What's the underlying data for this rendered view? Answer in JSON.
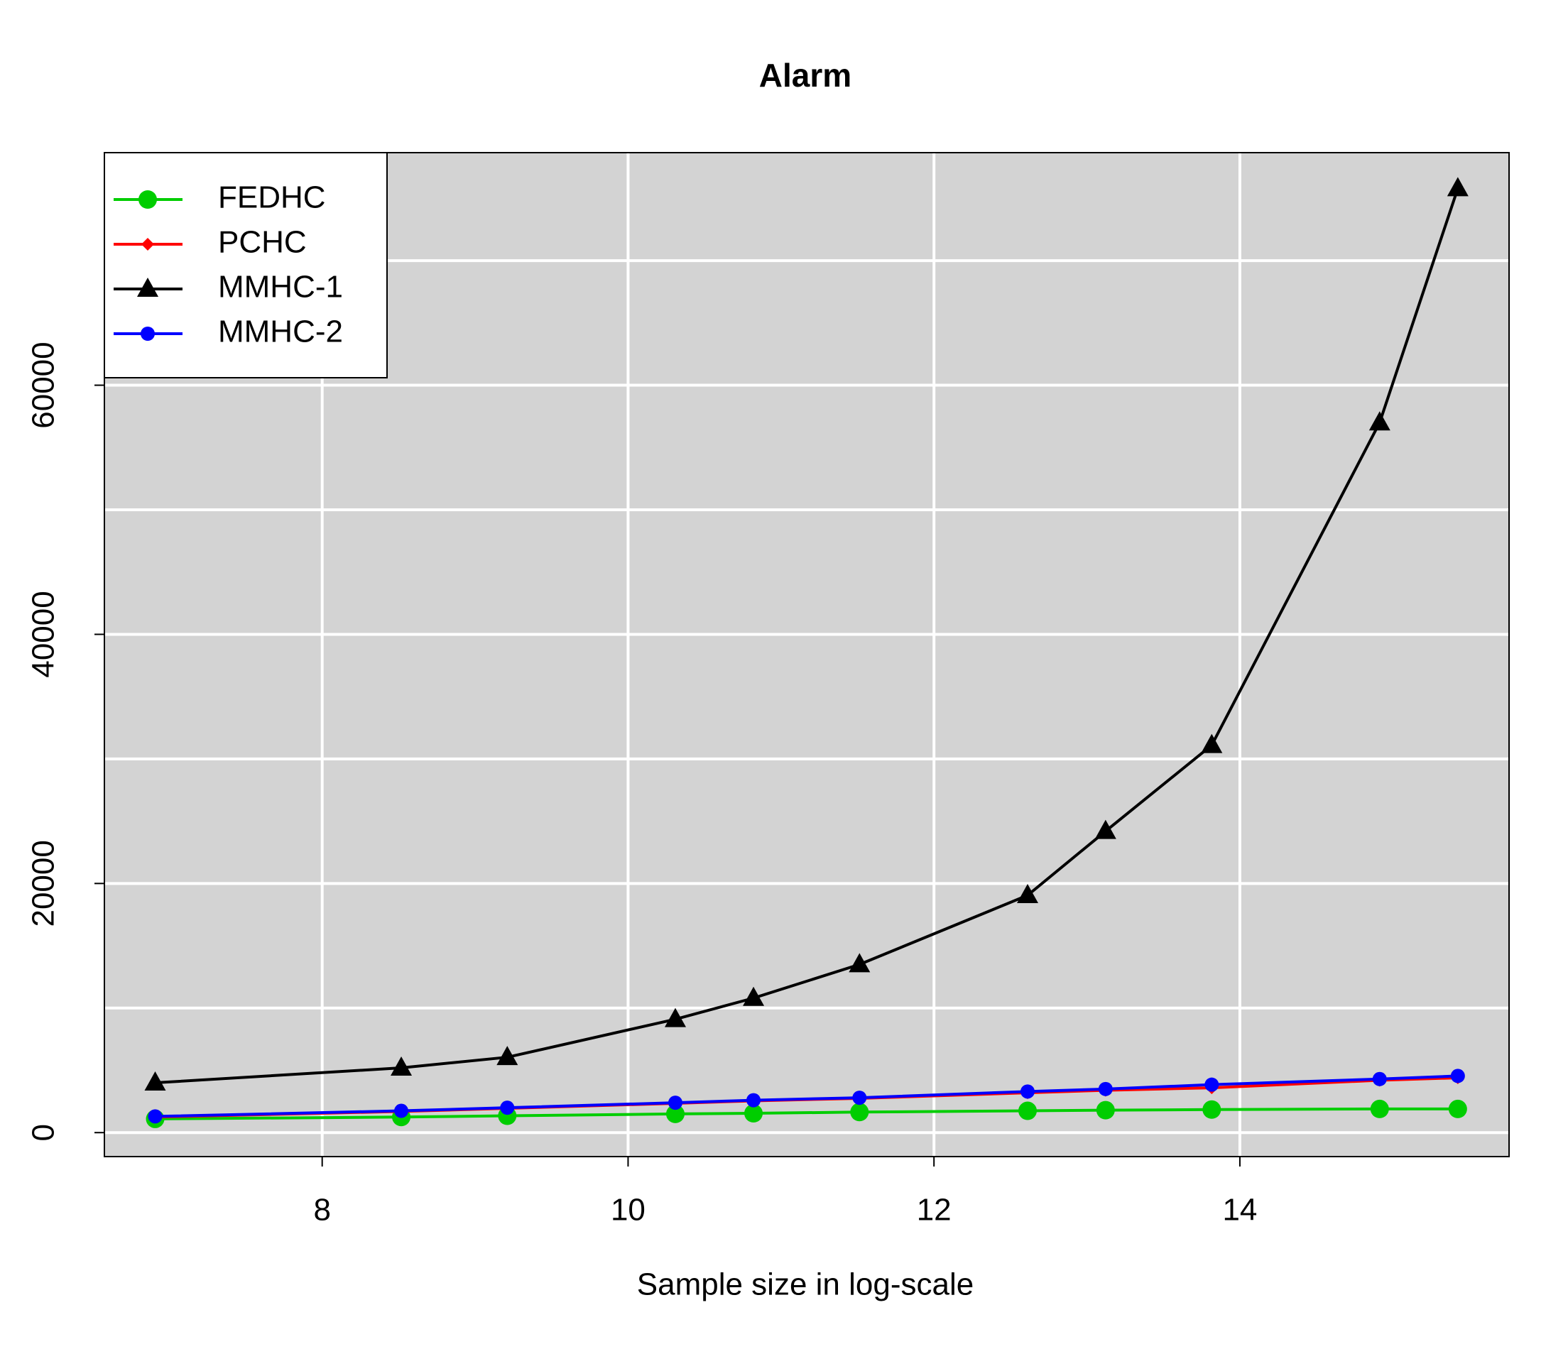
{
  "chart_data": {
    "type": "line",
    "title": "Alarm",
    "x_label": "Sample size in log-scale",
    "x": [
      6.908,
      8.517,
      9.21,
      10.309,
      10.82,
      11.513,
      12.612,
      13.122,
      13.816,
      14.914,
      15.425
    ],
    "series": [
      {
        "name": "FEDHC",
        "color": "#00cd00",
        "marker": "circle",
        "values": [
          1100,
          1250,
          1350,
          1500,
          1550,
          1650,
          1750,
          1800,
          1850,
          1900,
          1900
        ]
      },
      {
        "name": "PCHC",
        "color": "#ff0000",
        "marker": "diamond",
        "values": [
          1250,
          1700,
          1950,
          2350,
          2550,
          2750,
          3200,
          3400,
          3600,
          4200,
          4400
        ]
      },
      {
        "name": "MMHC-1",
        "color": "#000000",
        "marker": "triangle",
        "values": [
          4000,
          5200,
          6050,
          9100,
          10800,
          13500,
          19050,
          24200,
          31100,
          57000,
          75800
        ]
      },
      {
        "name": "MMHC-2",
        "color": "#0000ff",
        "marker": "small-circle",
        "values": [
          1300,
          1750,
          2000,
          2400,
          2600,
          2800,
          3300,
          3500,
          3850,
          4300,
          4550
        ]
      }
    ],
    "xlim": [
      6.576,
      15.76
    ],
    "xticks": [
      8,
      10,
      12,
      14
    ],
    "ylim": [
      -1925,
      78670
    ],
    "yticks": [
      0,
      20000,
      40000,
      60000
    ],
    "ygrid": [
      0,
      10000,
      20000,
      30000,
      40000,
      50000,
      60000,
      70000
    ],
    "grid": true,
    "background": "#d3d3d3",
    "legend": "top-left"
  }
}
